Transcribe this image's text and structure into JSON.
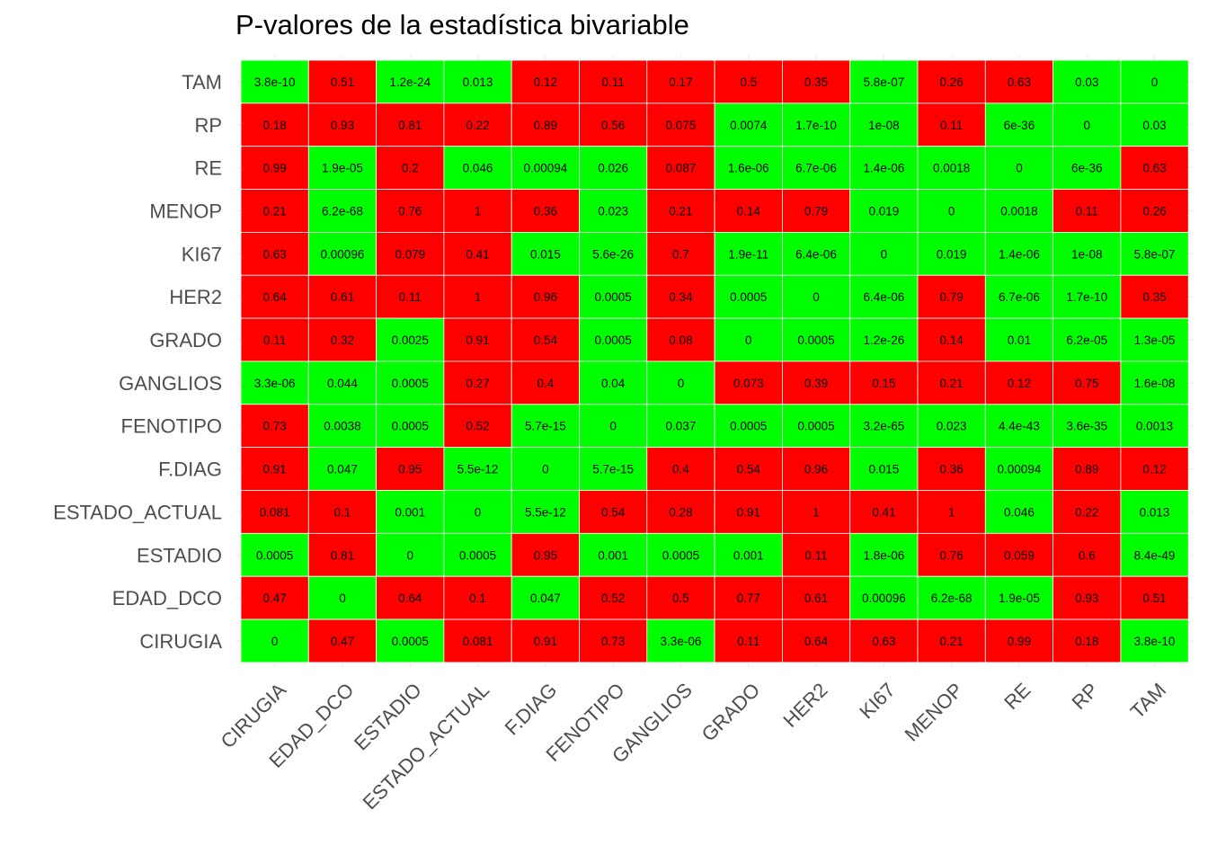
{
  "chart_data": {
    "type": "heatmap",
    "title": "P-valores de la estadística bivariable",
    "xlabel": "",
    "ylabel": "",
    "x_categories": [
      "CIRUGIA",
      "EDAD_DCO",
      "ESTADIO",
      "ESTADO_ACTUAL",
      "F.DIAG",
      "FENOTIPO",
      "GANGLIOS",
      "GRADO",
      "HER2",
      "KI67",
      "MENOP",
      "RE",
      "RP",
      "TAM"
    ],
    "y_categories": [
      "TAM",
      "RP",
      "RE",
      "MENOP",
      "KI67",
      "HER2",
      "GRADO",
      "GANGLIOS",
      "FENOTIPO",
      "F.DIAG",
      "ESTADO_ACTUAL",
      "ESTADIO",
      "EDAD_DCO",
      "CIRUGIA"
    ],
    "values": [
      [
        "3.8e-10",
        "0.51",
        "1.2e-24",
        "0.013",
        "0.12",
        "0.11",
        "0.17",
        "0.5",
        "0.35",
        "5.8e-07",
        "0.26",
        "0.63",
        "0.03",
        "0"
      ],
      [
        "0.18",
        "0.93",
        "0.81",
        "0.22",
        "0.89",
        "0.56",
        "0.075",
        "0.0074",
        "1.7e-10",
        "1e-08",
        "0.11",
        "6e-36",
        "0",
        "0.03"
      ],
      [
        "0.99",
        "1.9e-05",
        "0.2",
        "0.046",
        "0.00094",
        "0.026",
        "0.087",
        "1.6e-06",
        "6.7e-06",
        "1.4e-06",
        "0.0018",
        "0",
        "6e-36",
        "0.63"
      ],
      [
        "0.21",
        "6.2e-68",
        "0.76",
        "1",
        "0.36",
        "0.023",
        "0.21",
        "0.14",
        "0.79",
        "0.019",
        "0",
        "0.0018",
        "0.11",
        "0.26"
      ],
      [
        "0.63",
        "0.00096",
        "0.079",
        "0.41",
        "0.015",
        "5.6e-26",
        "0.7",
        "1.9e-11",
        "6.4e-06",
        "0",
        "0.019",
        "1.4e-06",
        "1e-08",
        "5.8e-07"
      ],
      [
        "0.64",
        "0.61",
        "0.11",
        "1",
        "0.96",
        "0.0005",
        "0.34",
        "0.0005",
        "0",
        "6.4e-06",
        "0.79",
        "6.7e-06",
        "1.7e-10",
        "0.35"
      ],
      [
        "0.11",
        "0.32",
        "0.0025",
        "0.91",
        "0.54",
        "0.0005",
        "0.08",
        "0",
        "0.0005",
        "1.2e-26",
        "0.14",
        "0.01",
        "6.2e-05",
        "1.3e-05"
      ],
      [
        "3.3e-06",
        "0.044",
        "0.0005",
        "0.27",
        "0.4",
        "0.04",
        "0",
        "0.073",
        "0.39",
        "0.15",
        "0.21",
        "0.12",
        "0.75",
        "1.6e-08"
      ],
      [
        "0.73",
        "0.0038",
        "0.0005",
        "0.52",
        "5.7e-15",
        "0",
        "0.037",
        "0.0005",
        "0.0005",
        "3.2e-65",
        "0.023",
        "4.4e-43",
        "3.6e-35",
        "0.0013"
      ],
      [
        "0.91",
        "0.047",
        "0.95",
        "5.5e-12",
        "0",
        "5.7e-15",
        "0.4",
        "0.54",
        "0.96",
        "0.015",
        "0.36",
        "0.00094",
        "0.89",
        "0.12"
      ],
      [
        "0.081",
        "0.1",
        "0.001",
        "0",
        "5.5e-12",
        "0.54",
        "0.28",
        "0.91",
        "1",
        "0.41",
        "1",
        "0.046",
        "0.22",
        "0.013"
      ],
      [
        "0.0005",
        "0.81",
        "0",
        "0.0005",
        "0.95",
        "0.001",
        "0.0005",
        "0.001",
        "0.11",
        "1.8e-06",
        "0.76",
        "0.059",
        "0.6",
        "8.4e-49"
      ],
      [
        "0.47",
        "0",
        "0.64",
        "0.1",
        "0.047",
        "0.52",
        "0.5",
        "0.77",
        "0.61",
        "0.00096",
        "6.2e-68",
        "1.9e-05",
        "0.93",
        "0.51"
      ],
      [
        "0",
        "0.47",
        "0.0005",
        "0.081",
        "0.91",
        "0.73",
        "3.3e-06",
        "0.11",
        "0.64",
        "0.63",
        "0.21",
        "0.99",
        "0.18",
        "3.8e-10"
      ]
    ],
    "significance_threshold": 0.05,
    "colors": {
      "significant": "#00ff00",
      "not_significant": "#ff0000",
      "grid": "#ebebeb",
      "cell_border": "#ffffff"
    },
    "legend": "none",
    "grid": true
  }
}
